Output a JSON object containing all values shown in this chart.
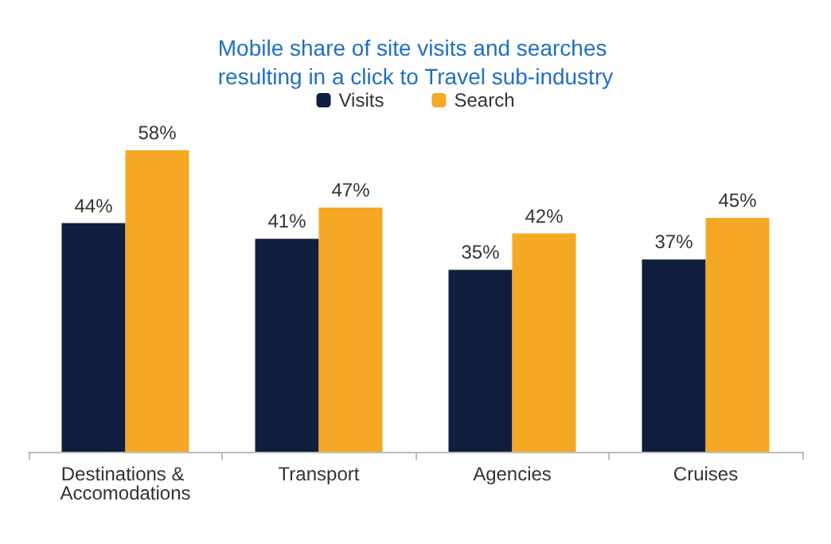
{
  "chart_data": {
    "type": "bar",
    "title": "Mobile share of site visits and searches resulting in a click to Travel sub-industry",
    "categories": [
      "Destinations & Accomodations",
      "Transport",
      "Agencies",
      "Cruises"
    ],
    "series": [
      {
        "name": "Visits",
        "color": "#0f1f3d",
        "values": [
          44,
          41,
          35,
          37
        ],
        "value_labels": [
          "44%",
          "41%",
          "35%",
          "37%"
        ]
      },
      {
        "name": "Search",
        "color": "#f5a823",
        "values": [
          58,
          47,
          42,
          45
        ],
        "value_labels": [
          "58%",
          "47%",
          "42%",
          "45%"
        ]
      }
    ],
    "legend": "top"
  }
}
